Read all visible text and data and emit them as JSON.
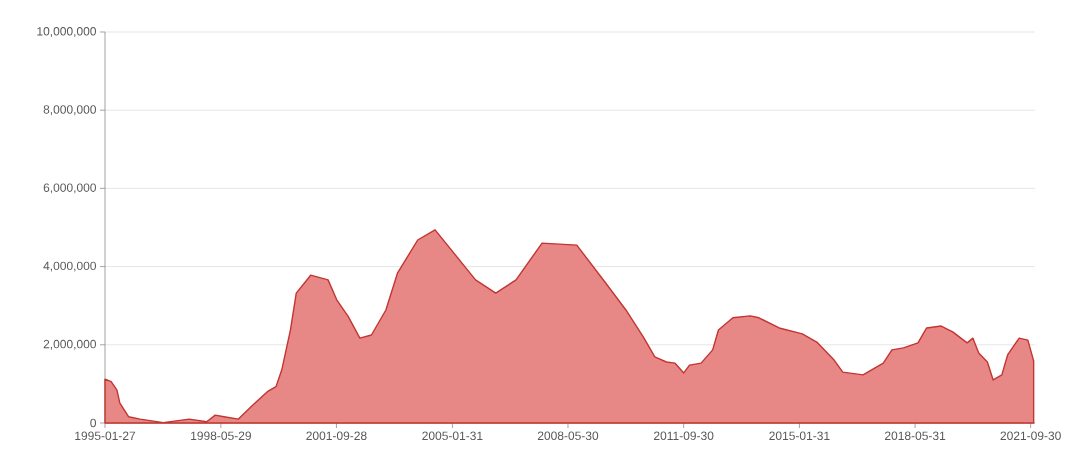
{
  "chart_data": {
    "type": "area",
    "color": "#c23531",
    "x": [
      "1995-01-27",
      "1995-04",
      "1995-06",
      "1995-07",
      "1995-10",
      "1996-02",
      "1996-10",
      "1997-07",
      "1998-01",
      "1998-04",
      "1998-07",
      "1998-12",
      "1999-05",
      "1999-10",
      "2000-01",
      "2000-03",
      "2000-06",
      "2000-08",
      "2001-01",
      "2001-07",
      "2001-10",
      "2002-02",
      "2002-06",
      "2002-10",
      "2003-03",
      "2003-07",
      "2004-02",
      "2004-08",
      "2005-10",
      "2006-05",
      "2006-12",
      "2007-09",
      "2008-09",
      "2009-07",
      "2010-02",
      "2010-08",
      "2010-12",
      "2011-04",
      "2011-07",
      "2011-10",
      "2011-12",
      "2012-04",
      "2012-08",
      "2012-10",
      "2013-03",
      "2013-09",
      "2013-12",
      "2014-07",
      "2015-03",
      "2015-08",
      "2016-02",
      "2016-05",
      "2016-12",
      "2017-07",
      "2017-10",
      "2018-02",
      "2018-07",
      "2018-10",
      "2019-03",
      "2019-07",
      "2019-12",
      "2020-02",
      "2020-04",
      "2020-07",
      "2020-09",
      "2020-12",
      "2021-02",
      "2021-06",
      "2021-09",
      "2021-11"
    ],
    "values": [
      1120000,
      1060000,
      840000,
      510000,
      160000,
      100000,
      10000,
      100000,
      30000,
      200000,
      160000,
      100000,
      460000,
      800000,
      930000,
      1360000,
      2380000,
      3320000,
      3780000,
      3660000,
      3150000,
      2720000,
      2170000,
      2250000,
      2890000,
      3830000,
      4680000,
      4940000,
      3660000,
      3320000,
      3660000,
      4600000,
      4550000,
      3580000,
      2890000,
      2200000,
      1690000,
      1560000,
      1530000,
      1280000,
      1480000,
      1530000,
      1870000,
      2380000,
      2690000,
      2740000,
      2690000,
      2430000,
      2280000,
      2070000,
      1610000,
      1300000,
      1230000,
      1530000,
      1870000,
      1920000,
      2050000,
      2430000,
      2480000,
      2330000,
      2050000,
      2170000,
      1790000,
      1560000,
      1100000,
      1230000,
      1740000,
      2170000,
      2120000,
      1590000
    ],
    "xlim": [
      "1995-01-27",
      "2021-11-15"
    ],
    "xticks": [
      "1995-01-27",
      "1998-05-29",
      "2001-09-28",
      "2005-01-31",
      "2008-05-30",
      "2011-09-30",
      "2015-01-31",
      "2018-05-31",
      "2021-09-30"
    ],
    "ylim": [
      0,
      10000000
    ],
    "yticks": [
      {
        "value": 0,
        "label": "0"
      },
      {
        "value": 2000000,
        "label": "2,000,000"
      },
      {
        "value": 4000000,
        "label": "4,000,000"
      },
      {
        "value": 6000000,
        "label": "6,000,000"
      },
      {
        "value": 8000000,
        "label": "8,000,000"
      },
      {
        "value": 10000000,
        "label": "10,000,000"
      }
    ],
    "grid": "y"
  }
}
